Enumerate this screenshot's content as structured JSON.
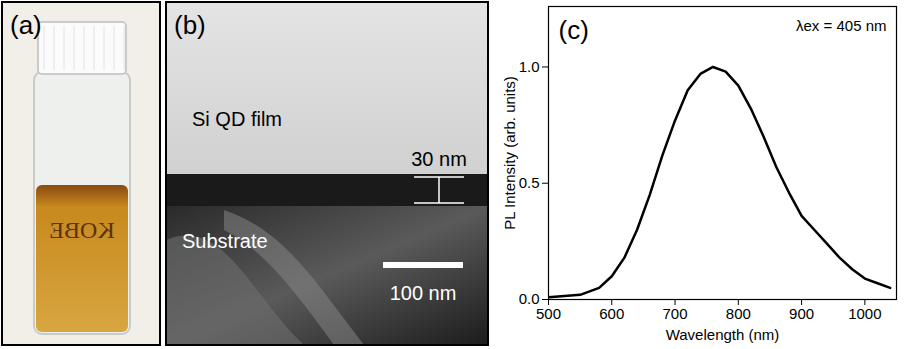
{
  "figure": {
    "panel_a": {
      "label": "(a)",
      "vial_label": "KOBE"
    },
    "panel_b": {
      "label": "(b)",
      "layers": [
        "Si QD film",
        "Substrate"
      ],
      "thickness_label": "30 nm",
      "scale_bar": "100 nm"
    }
  },
  "chart_data": {
    "type": "line",
    "annotations": [
      "(c)",
      "λex = 405 nm"
    ],
    "x_label": "Wavelength (nm)",
    "y_label": "PL Intensity (arb. units)",
    "x": [
      500,
      550,
      580,
      600,
      620,
      640,
      660,
      680,
      700,
      720,
      740,
      760,
      780,
      800,
      820,
      840,
      860,
      880,
      900,
      920,
      940,
      960,
      980,
      1000,
      1020,
      1040
    ],
    "values": [
      0.01,
      0.02,
      0.05,
      0.1,
      0.18,
      0.3,
      0.45,
      0.62,
      0.77,
      0.9,
      0.97,
      1.0,
      0.98,
      0.92,
      0.82,
      0.7,
      0.57,
      0.46,
      0.36,
      0.3,
      0.24,
      0.18,
      0.13,
      0.09,
      0.07,
      0.05
    ],
    "color": "#000000",
    "xlim": [
      500,
      1050
    ],
    "xticks": [
      500,
      600,
      700,
      800,
      900,
      1000
    ],
    "ylim": [
      0,
      1.26
    ],
    "yticks": [
      {
        "value": 0,
        "label": "0.0"
      },
      {
        "value": 0.5,
        "label": "0.5"
      },
      {
        "value": 1,
        "label": "1.0"
      }
    ]
  }
}
